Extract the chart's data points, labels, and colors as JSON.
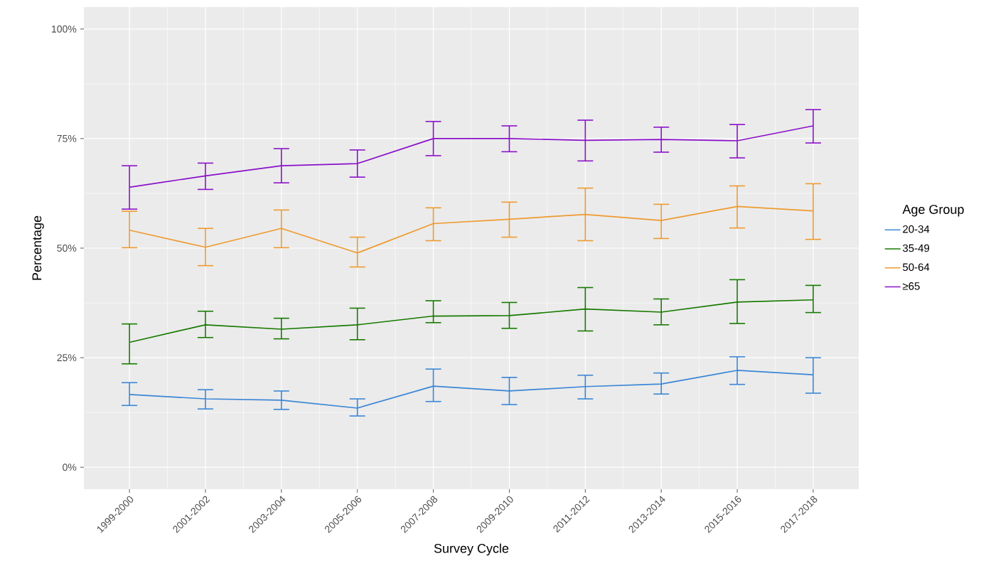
{
  "chart_data": {
    "type": "line",
    "xlabel": "Survey Cycle",
    "ylabel": "Percentage",
    "legend_title": "Age Group",
    "categories": [
      "1999-2000",
      "2001-2002",
      "2003-2004",
      "2005-2006",
      "2007-2008",
      "2009-2010",
      "2011-2012",
      "2013-2014",
      "2015-2016",
      "2017-2018"
    ],
    "series": [
      {
        "name": "20-34",
        "color": "#3a86d6",
        "values": [
          16.6,
          15.6,
          15.3,
          13.5,
          18.5,
          17.4,
          18.4,
          19.0,
          22.1,
          21.1
        ],
        "errors": [
          [
            14.1,
            19.3
          ],
          [
            13.3,
            17.7
          ],
          [
            13.2,
            17.4
          ],
          [
            11.7,
            15.6
          ],
          [
            15.0,
            22.4
          ],
          [
            14.3,
            20.5
          ],
          [
            15.6,
            21.0
          ],
          [
            16.7,
            21.5
          ],
          [
            18.9,
            25.2
          ],
          [
            16.9,
            25.0
          ]
        ]
      },
      {
        "name": "35-49",
        "color": "#177a00",
        "values": [
          28.5,
          32.5,
          31.5,
          32.5,
          34.5,
          34.6,
          36.1,
          35.4,
          37.7,
          38.2
        ],
        "errors": [
          [
            23.6,
            32.7
          ],
          [
            29.6,
            35.6
          ],
          [
            29.3,
            34.0
          ],
          [
            29.1,
            36.3
          ],
          [
            33.0,
            38.0
          ],
          [
            31.7,
            37.6
          ],
          [
            31.1,
            41.0
          ],
          [
            32.5,
            38.4
          ],
          [
            32.8,
            42.8
          ],
          [
            35.3,
            41.5
          ]
        ]
      },
      {
        "name": "50-64",
        "color": "#ef9a2f",
        "values": [
          54.1,
          50.2,
          54.5,
          48.9,
          55.6,
          56.6,
          57.7,
          56.3,
          59.5,
          58.5
        ],
        "errors": [
          [
            50.1,
            58.4
          ],
          [
            46.0,
            54.5
          ],
          [
            50.1,
            58.7
          ],
          [
            45.7,
            52.5
          ],
          [
            51.7,
            59.2
          ],
          [
            52.5,
            60.5
          ],
          [
            51.7,
            63.7
          ],
          [
            52.2,
            60.0
          ],
          [
            54.6,
            64.2
          ],
          [
            52.0,
            64.7
          ]
        ]
      },
      {
        "name": "≥65",
        "color": "#8b10c9",
        "values": [
          63.9,
          66.5,
          68.8,
          69.3,
          75.0,
          75.0,
          74.6,
          74.8,
          74.5,
          77.9
        ],
        "errors": [
          [
            58.9,
            68.8
          ],
          [
            63.4,
            69.4
          ],
          [
            64.9,
            72.7
          ],
          [
            66.2,
            72.4
          ],
          [
            71.1,
            78.9
          ],
          [
            72.0,
            77.9
          ],
          [
            69.9,
            79.2
          ],
          [
            71.9,
            77.6
          ],
          [
            70.6,
            78.2
          ],
          [
            74.0,
            81.6
          ]
        ]
      }
    ],
    "ylim": [
      -5,
      105
    ],
    "yticks": [
      {
        "value": 0,
        "label": "0%"
      },
      {
        "value": 25,
        "label": "25%"
      },
      {
        "value": 50,
        "label": "50%"
      },
      {
        "value": 75,
        "label": "75%"
      },
      {
        "value": 100,
        "label": "100%"
      }
    ],
    "grid": true,
    "legend": "right",
    "marker": "none",
    "line_style": "solid"
  }
}
